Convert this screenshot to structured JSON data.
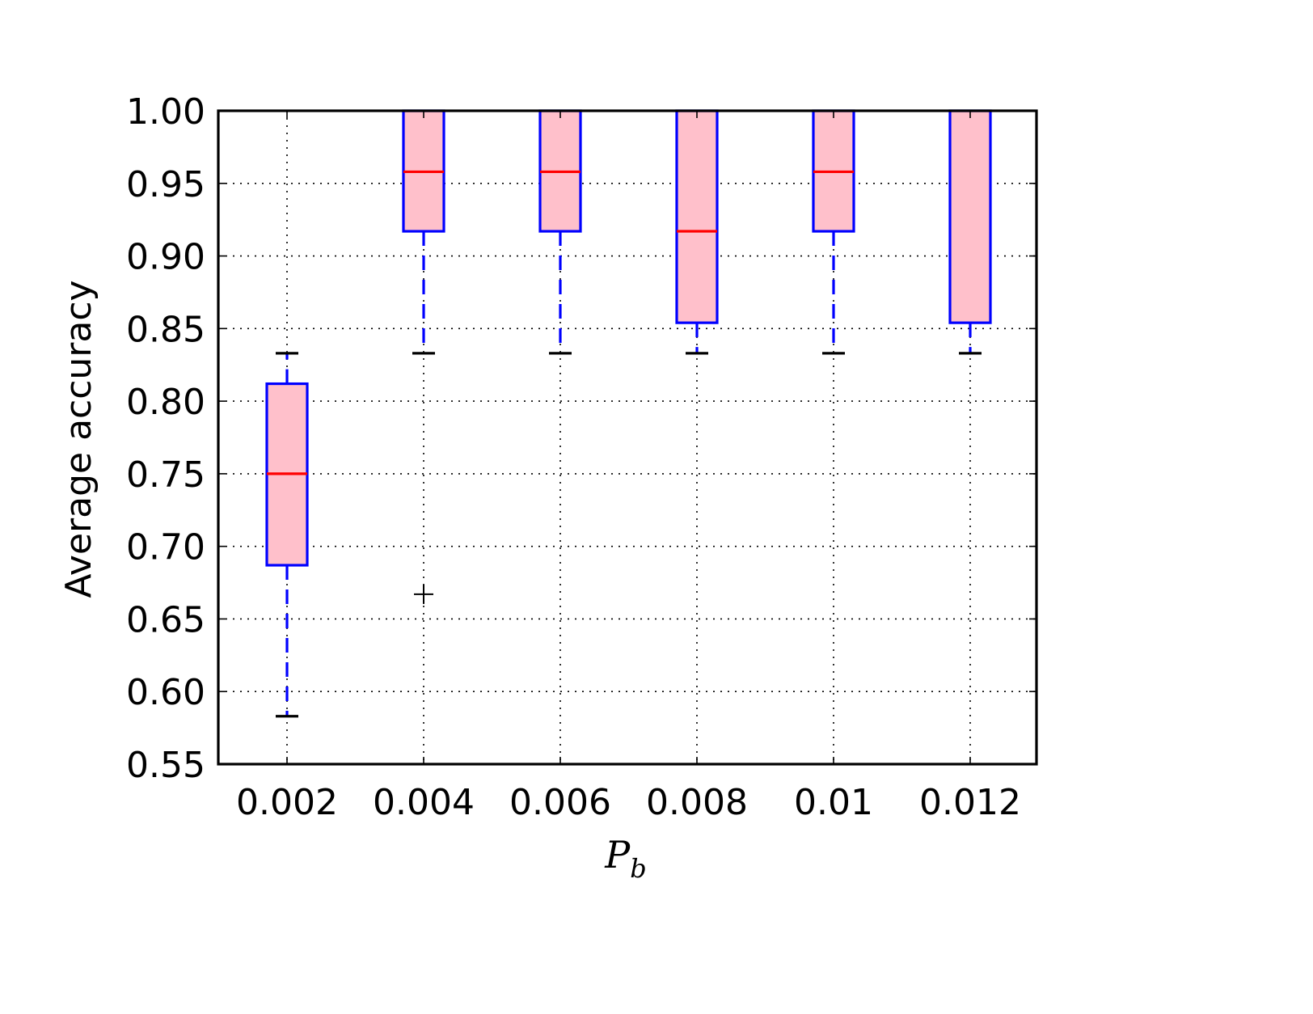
{
  "chart_data": {
    "type": "box",
    "title": "",
    "xlabel_main": "P",
    "xlabel_sub": "b",
    "ylabel": "Average accuracy",
    "ylim": [
      0.55,
      1.0
    ],
    "yticks": [
      0.55,
      0.6,
      0.65,
      0.7,
      0.75,
      0.8,
      0.85,
      0.9,
      0.95,
      1.0
    ],
    "ytick_labels": [
      "0.55",
      "0.60",
      "0.65",
      "0.70",
      "0.75",
      "0.80",
      "0.85",
      "0.90",
      "0.95",
      "1.00"
    ],
    "categories": [
      "0.002",
      "0.004",
      "0.006",
      "0.008",
      "0.01",
      "0.012"
    ],
    "grid": true,
    "boxes": [
      {
        "category": "0.002",
        "whisker_low": 0.583,
        "q1": 0.687,
        "median": 0.75,
        "q3": 0.812,
        "whisker_high": 0.833,
        "outliers": []
      },
      {
        "category": "0.004",
        "whisker_low": 0.833,
        "q1": 0.917,
        "median": 0.958,
        "q3": 1.0,
        "whisker_high": 1.0,
        "outliers": [
          0.667
        ]
      },
      {
        "category": "0.006",
        "whisker_low": 0.833,
        "q1": 0.917,
        "median": 0.958,
        "q3": 1.0,
        "whisker_high": 1.0,
        "outliers": []
      },
      {
        "category": "0.008",
        "whisker_low": 0.833,
        "q1": 0.854,
        "median": 0.917,
        "q3": 1.0,
        "whisker_high": 1.0,
        "outliers": []
      },
      {
        "category": "0.01",
        "whisker_low": 0.833,
        "q1": 0.917,
        "median": 0.958,
        "q3": 1.0,
        "whisker_high": 1.0,
        "outliers": []
      },
      {
        "category": "0.012",
        "whisker_low": 0.833,
        "q1": 0.854,
        "median": 1.0,
        "q3": 1.0,
        "whisker_high": 1.0,
        "outliers": []
      }
    ],
    "colors": {
      "box_fill": "#ffc0cb",
      "box_edge": "#0000ff",
      "median": "#ff0000",
      "whisker": "#0000ff",
      "cap": "#000000",
      "outlier": "#000000",
      "grid": "#000000",
      "axes": "#000000"
    }
  }
}
